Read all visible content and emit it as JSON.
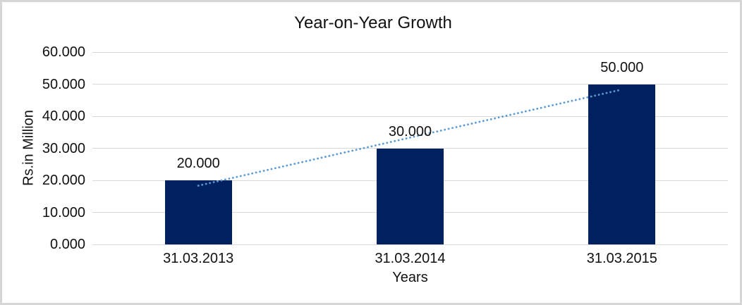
{
  "page": {
    "background": "#ffffff",
    "frame_border_color": "#d6d6d6"
  },
  "chart_data": {
    "type": "bar",
    "title": "Year-on-Year Growth",
    "xlabel": "Years",
    "ylabel": "Rs.in Million",
    "categories": [
      "31.03.2013",
      "31.03.2014",
      "31.03.2015"
    ],
    "values": [
      20000,
      30000,
      50000
    ],
    "value_labels": [
      "20.000",
      "30.000",
      "50.000"
    ],
    "y_ticks": [
      {
        "value": 0,
        "label": "0.000"
      },
      {
        "value": 10000,
        "label": "10.000"
      },
      {
        "value": 20000,
        "label": "20.000"
      },
      {
        "value": 30000,
        "label": "30.000"
      },
      {
        "value": 40000,
        "label": "40.000"
      },
      {
        "value": 50000,
        "label": "50.000"
      },
      {
        "value": 60000,
        "label": "60.000"
      }
    ],
    "ylim": [
      0,
      60000
    ],
    "grid": true,
    "legend_position": "none",
    "bar_color": "#002060",
    "gridline_color": "#d9d9d9",
    "text_color": "#111111",
    "trendline": {
      "type": "linear",
      "style": "dotted",
      "color": "#5b9bd5"
    }
  }
}
